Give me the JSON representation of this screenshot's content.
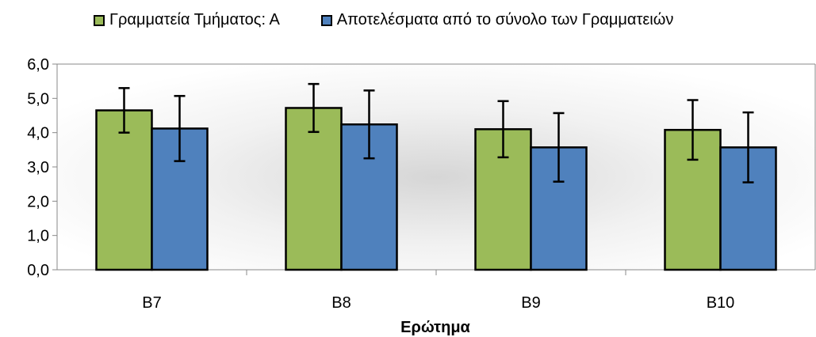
{
  "chart_data": {
    "type": "bar",
    "categories": [
      "B7",
      "B8",
      "B9",
      "B10"
    ],
    "series": [
      {
        "name": "Γραμματεία Τμήματος: Α",
        "color": "#9BBB59",
        "values": [
          4.65,
          4.72,
          4.1,
          4.08
        ],
        "error": [
          0.65,
          0.7,
          0.82,
          0.87
        ]
      },
      {
        "name": "Αποτελέσματα από το σύνολο των Γραμματειών",
        "color": "#4F81BD",
        "values": [
          4.12,
          4.24,
          3.57,
          3.57
        ],
        "error": [
          0.95,
          0.99,
          1.0,
          1.02
        ]
      }
    ],
    "xlabel": "Ερώτημα",
    "ylabel": "",
    "ylim": [
      0,
      6
    ],
    "yticks": [
      "0,0",
      "1,0",
      "2,0",
      "3,0",
      "4,0",
      "5,0",
      "6,0"
    ],
    "grid": false,
    "legend": "top"
  }
}
